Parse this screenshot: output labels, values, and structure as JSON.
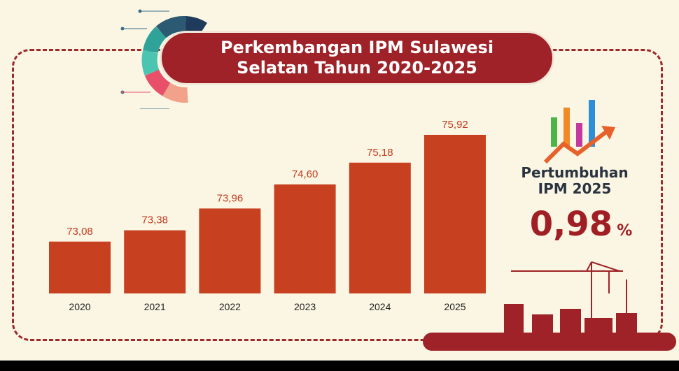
{
  "title_line1": "Perkembangan IPM Sulawesi",
  "title_line2": "Selatan Tahun 2020-2025",
  "growth": {
    "label_line1": "Pertumbuhan",
    "label_line2": "IPM 2025",
    "value": "0,98",
    "unit": "%"
  },
  "colors": {
    "bar": "#c7401f",
    "accent": "#9e2227",
    "background": "#fbf6e3"
  },
  "chart_data": {
    "type": "bar",
    "title": "Perkembangan IPM Sulawesi Selatan Tahun 2020-2025",
    "categories": [
      "2020",
      "2021",
      "2022",
      "2023",
      "2024",
      "2025"
    ],
    "values": [
      73.08,
      73.38,
      73.96,
      74.6,
      75.18,
      75.92
    ],
    "value_labels": [
      "73,08",
      "73,38",
      "73,96",
      "74,60",
      "75,18",
      "75,92"
    ],
    "xlabel": "",
    "ylabel": "",
    "grid": false,
    "legend": "none"
  }
}
